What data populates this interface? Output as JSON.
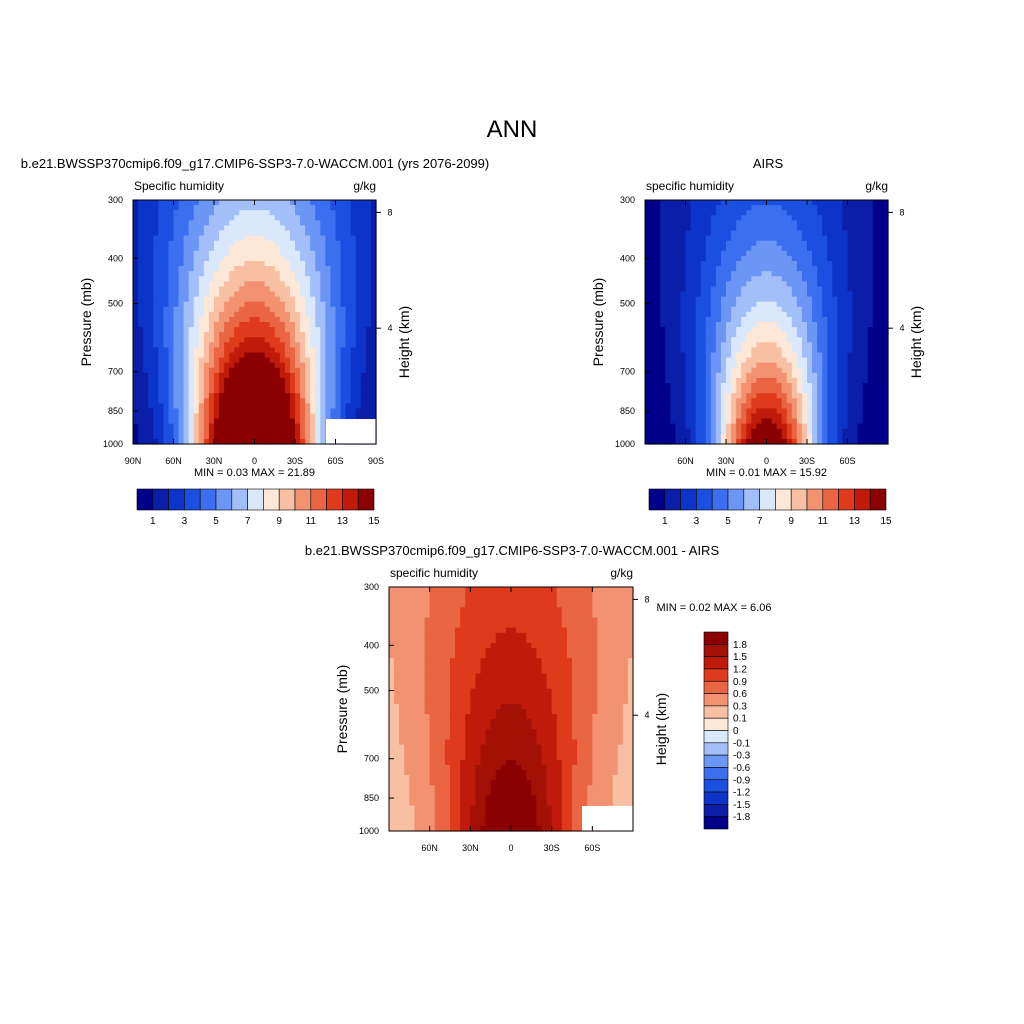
{
  "figure": {
    "title": "ANN"
  },
  "colors": {
    "abs_levels_15": [
      "#00008b",
      "#0a1ea9",
      "#0d34c8",
      "#1a4fe0",
      "#3b6ff0",
      "#6c96f5",
      "#a3bff9",
      "#d9e8fb",
      "#fde7d6",
      "#f8bfa2",
      "#f29270",
      "#ea6543",
      "#df3a1c",
      "#c01a0a",
      "#8b0000"
    ],
    "diff_levels_16": [
      "#00008b",
      "#0a1ea9",
      "#0d34c8",
      "#1a4fe0",
      "#3b6ff0",
      "#6c96f5",
      "#a3bff9",
      "#d9e8fb",
      "#fde7d6",
      "#f8bfa2",
      "#f29270",
      "#ea6543",
      "#df3a1c",
      "#c01a0a",
      "#a31005",
      "#8b0000"
    ]
  },
  "chart_data": [
    {
      "type": "heatmap",
      "panel": "test",
      "title": "b.e21.BWSSP370cmip6.f09_g17.CMIP6-SSP3-7.0-WACCM.001 (yrs 2076-2099)",
      "left_label": "Specific humidity",
      "right_label": "g/kg",
      "ylabel": "Pressure (mb)",
      "ylabel_right": "Height (km)",
      "x_ticks": [
        "90N",
        "60N",
        "30N",
        "0",
        "30S",
        "60S",
        "90S"
      ],
      "x_tick_values": [
        90,
        60,
        30,
        0,
        -30,
        -60,
        -90
      ],
      "xlim": [
        90,
        -90
      ],
      "y_ticks": [
        "300",
        "400",
        "500",
        "700",
        "850",
        "1000"
      ],
      "y_tick_values": [
        300,
        400,
        500,
        700,
        850,
        1000
      ],
      "ylim": [
        1000,
        300
      ],
      "height_ticks": [
        "8",
        "4"
      ],
      "height_tick_values": [
        8,
        4
      ],
      "stats": "MIN =   0.03  MAX =  21.89",
      "min": 0.03,
      "max": 21.89,
      "levels": [
        1,
        2,
        3,
        4,
        5,
        6,
        7,
        8,
        9,
        10,
        11,
        12,
        13,
        14,
        15
      ],
      "colorbar_labels": [
        "1",
        "3",
        "5",
        "7",
        "9",
        "11",
        "13",
        "15"
      ],
      "field": {
        "center_lat": 0,
        "peak": 21.89,
        "lat_width": 45,
        "scale_height_ln": 1.0,
        "edge_value": 0.35,
        "min": 0.03
      }
    },
    {
      "type": "heatmap",
      "panel": "obs",
      "title": "AIRS",
      "left_label": "specific humidity",
      "right_label": "g/kg",
      "ylabel": "Pressure (mb)",
      "ylabel_right": "Height (km)",
      "x_ticks": [
        "60N",
        "30N",
        "0",
        "30S",
        "60S"
      ],
      "x_tick_values": [
        60,
        30,
        0,
        -30,
        -60
      ],
      "xlim": [
        90,
        -90
      ],
      "y_ticks": [
        "300",
        "400",
        "500",
        "700",
        "850",
        "1000"
      ],
      "y_tick_values": [
        300,
        400,
        500,
        700,
        850,
        1000
      ],
      "ylim": [
        1000,
        300
      ],
      "height_ticks": [
        "8",
        "4"
      ],
      "height_tick_values": [
        8,
        4
      ],
      "stats": "MIN =   0.01  MAX =  15.92",
      "min": 0.01,
      "max": 15.92,
      "levels": [
        1,
        2,
        3,
        4,
        5,
        6,
        7,
        8,
        9,
        10,
        11,
        12,
        13,
        14,
        15
      ],
      "colorbar_labels": [
        "1",
        "3",
        "5",
        "7",
        "9",
        "11",
        "13",
        "15"
      ],
      "field": {
        "center_lat": 0,
        "peak": 15.92,
        "lat_width": 38,
        "scale_height_ln": 0.85,
        "edge_value": 0.3,
        "min": 0.01
      }
    },
    {
      "type": "heatmap",
      "panel": "difference",
      "title": "b.e21.BWSSP370cmip6.f09_g17.CMIP6-SSP3-7.0-WACCM.001 - AIRS",
      "left_label": "specific humidity",
      "right_label": "g/kg",
      "ylabel": "Pressure (mb)",
      "ylabel_right": "Height (km)",
      "x_ticks": [
        "60N",
        "30N",
        "0",
        "30S",
        "60S"
      ],
      "x_tick_values": [
        60,
        30,
        0,
        -30,
        -60
      ],
      "xlim": [
        90,
        -90
      ],
      "y_ticks": [
        "300",
        "400",
        "500",
        "700",
        "850",
        "1000"
      ],
      "y_tick_values": [
        300,
        400,
        500,
        700,
        850,
        1000
      ],
      "ylim": [
        1000,
        300
      ],
      "height_ticks": [
        "8",
        "4"
      ],
      "height_tick_values": [
        8,
        4
      ],
      "stats": "MIN =   0.02  MAX =   6.06",
      "min": 0.02,
      "max": 6.06,
      "levels": [
        -1.8,
        -1.5,
        -1.2,
        -0.9,
        -0.6,
        -0.3,
        -0.1,
        0,
        0.1,
        0.3,
        0.6,
        0.9,
        1.2,
        1.5,
        1.8
      ],
      "colorbar_labels": [
        "1.8",
        "1.5",
        "1.2",
        "0.9",
        "0.6",
        "0.3",
        "0.1",
        "0",
        "-0.1",
        "-0.3",
        "-0.6",
        "-0.9",
        "-1.2",
        "-1.5",
        "-1.8"
      ],
      "field": {
        "center_lat": 0,
        "peak": 6.06,
        "lat_width": 45,
        "scale_height_ln": 1.6,
        "edge_value": 0.3,
        "min": 0.02
      }
    }
  ]
}
